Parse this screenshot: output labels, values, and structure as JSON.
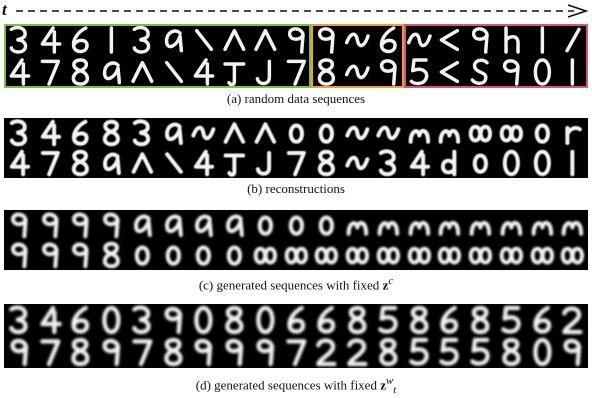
{
  "figure": {
    "time_label": "t",
    "colors": {
      "background": "#000000",
      "digit": "#f2f2f2",
      "box_green": "#7fbf3f",
      "box_orange": "#f0a030",
      "box_pink": "#e0507a",
      "arrow": "#111111"
    },
    "panels": [
      {
        "id": "a",
        "caption": "(a) random data sequences",
        "blur": 0,
        "groups": [
          {
            "color_key": "box_green",
            "start": 0,
            "count": 10
          },
          {
            "color_key": "box_orange",
            "start": 10,
            "count": 3
          },
          {
            "color_key": "box_pink",
            "start": 13,
            "count": 6
          }
        ],
        "rows": [
          [
            "3",
            "4",
            "6",
            "1",
            "3",
            "a",
            "\\",
            "^",
            "^",
            "9",
            "9",
            "~",
            "6",
            "~",
            "<",
            "9",
            "h",
            "1",
            "/"
          ],
          [
            "4",
            "7",
            "8",
            "a",
            "^",
            "\\",
            "4",
            "T",
            "J",
            "7",
            "8",
            "~",
            "9",
            "5",
            "<",
            "S",
            "9",
            "0",
            "1"
          ]
        ]
      },
      {
        "id": "b",
        "caption": "(b) reconstructions",
        "blur": 0.5,
        "rows": [
          [
            "3",
            "4",
            "6",
            "8",
            "3",
            "a",
            "~",
            "^",
            "^",
            "o",
            "o",
            "~",
            "~",
            "m",
            "m",
            "oo",
            "oo",
            "o",
            "r"
          ],
          [
            "4",
            "7",
            "8",
            "a",
            "^",
            "\\",
            "4",
            "T",
            "J",
            "7",
            "8",
            "~",
            "3",
            "4",
            "d",
            "o",
            "0",
            "0",
            "1"
          ]
        ]
      },
      {
        "id": "c",
        "caption_prefix": "(c) generated sequences with fixed",
        "caption_var": "z",
        "caption_sup": "c",
        "caption_sub": "",
        "blur": 0.9,
        "rows": [
          [
            "9",
            "9",
            "9",
            "9",
            "a",
            "a",
            "a",
            "a",
            "o",
            "o",
            "o",
            "m",
            "m",
            "m",
            "m",
            "m",
            "m",
            "m",
            "m"
          ],
          [
            "9",
            "9",
            "9",
            "8",
            "o",
            "o",
            "o",
            "o",
            "oo",
            "oo",
            "oo",
            "oo",
            "oo",
            "oo",
            "oo",
            "oo",
            "oo",
            "oo",
            "oo"
          ]
        ]
      },
      {
        "id": "d",
        "caption_prefix": "(d) generated sequences with fixed",
        "caption_var": "z",
        "caption_sup": "w",
        "caption_sub": "t",
        "blur": 0.9,
        "rows": [
          [
            "3",
            "4",
            "6",
            "0",
            "3",
            "9",
            "0",
            "8",
            "0",
            "6",
            "6",
            "8",
            "5",
            "8",
            "6",
            "8",
            "5",
            "6",
            "2"
          ],
          [
            "9",
            "7",
            "8",
            "9",
            "7",
            "8",
            "9",
            "9",
            "9",
            "7",
            "2",
            "2",
            "8",
            "5",
            "5",
            "5",
            "8",
            "0",
            "9"
          ]
        ]
      }
    ]
  }
}
